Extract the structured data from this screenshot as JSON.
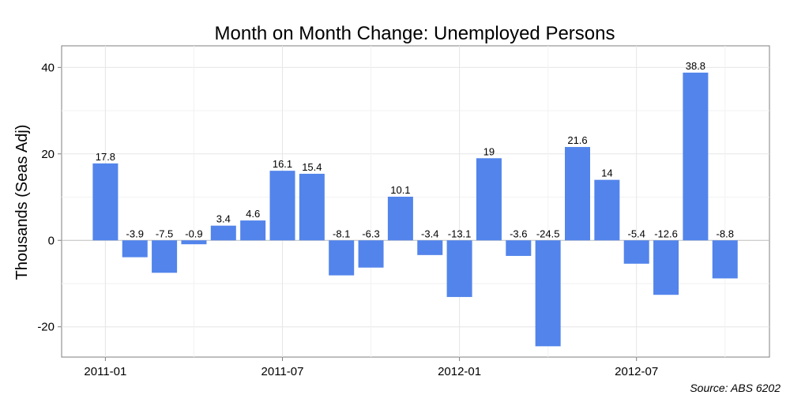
{
  "chart_data": {
    "type": "bar",
    "title": "Month on Month Change: Unemployed Persons",
    "xlabel": "",
    "ylabel": "Thousands (Seas Adj)",
    "source": "Source: ABS 6202",
    "color": "#5284EB",
    "ylim": [
      -27,
      45
    ],
    "y_ticks": [
      -20,
      0,
      20,
      40
    ],
    "x_tick_labels": [
      "2011-01",
      "2011-07",
      "2012-01",
      "2012-07"
    ],
    "x_tick_indices": [
      0,
      6,
      12,
      18
    ],
    "grid": true,
    "categories": [
      "2011-01",
      "2011-02",
      "2011-03",
      "2011-04",
      "2011-05",
      "2011-06",
      "2011-07",
      "2011-08",
      "2011-09",
      "2011-10",
      "2011-11",
      "2011-12",
      "2012-01",
      "2012-02",
      "2012-03",
      "2012-04",
      "2012-05",
      "2012-06",
      "2012-07",
      "2012-08",
      "2012-09",
      "2012-10",
      "2012-11"
    ],
    "values": [
      17.8,
      -3.9,
      -7.5,
      -0.9,
      3.4,
      4.6,
      16.1,
      15.4,
      -8.1,
      -6.3,
      10.1,
      -3.4,
      -13.1,
      19,
      -3.6,
      -24.5,
      21.6,
      14,
      -5.4,
      -12.6,
      38.8,
      -8.8,
      null
    ],
    "data_labels": [
      "17.8",
      "-3.9",
      "-7.5",
      "-0.9",
      "3.4",
      "4.6",
      "16.1",
      "15.4",
      "-8.1",
      "-6.3",
      "10.1",
      "-3.4",
      "-13.1",
      "19",
      "-3.6",
      "-24.5",
      "21.6",
      "14",
      "-5.4",
      "-12.6",
      "38.8",
      "-8.8",
      ""
    ]
  }
}
